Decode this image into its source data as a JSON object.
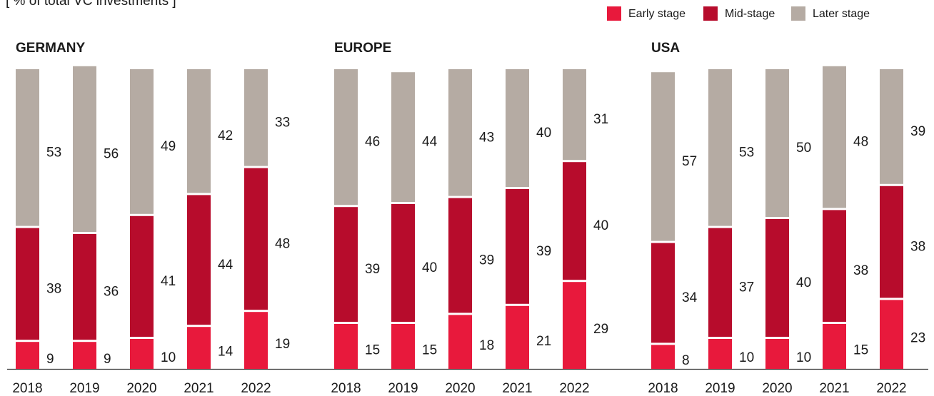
{
  "subtitle": "[ % of total VC investments ]",
  "chart_data": [
    {
      "type": "bar",
      "stacked": true,
      "title": "GERMANY",
      "categories": [
        "2018",
        "2019",
        "2020",
        "2021",
        "2022"
      ],
      "ylim": [
        0,
        100
      ],
      "series": [
        {
          "name": "Early stage",
          "color": "#e8193c",
          "values": [
            9,
            9,
            10,
            14,
            19
          ]
        },
        {
          "name": "Mid-stage",
          "color": "#b70c2c",
          "values": [
            38,
            36,
            41,
            44,
            48
          ]
        },
        {
          "name": "Later stage",
          "color": "#b5aba3",
          "values": [
            53,
            56,
            49,
            42,
            33
          ]
        }
      ]
    },
    {
      "type": "bar",
      "stacked": true,
      "title": "EUROPE",
      "categories": [
        "2018",
        "2019",
        "2020",
        "2021",
        "2022"
      ],
      "ylim": [
        0,
        100
      ],
      "series": [
        {
          "name": "Early stage",
          "color": "#e8193c",
          "values": [
            15,
            15,
            18,
            21,
            29
          ]
        },
        {
          "name": "Mid-stage",
          "color": "#b70c2c",
          "values": [
            39,
            40,
            39,
            39,
            40
          ]
        },
        {
          "name": "Later stage",
          "color": "#b5aba3",
          "values": [
            46,
            44,
            43,
            40,
            31
          ]
        }
      ]
    },
    {
      "type": "bar",
      "stacked": true,
      "title": "USA",
      "categories": [
        "2018",
        "2019",
        "2020",
        "2021",
        "2022"
      ],
      "ylim": [
        0,
        100
      ],
      "series": [
        {
          "name": "Early stage",
          "color": "#e8193c",
          "values": [
            8,
            10,
            10,
            15,
            23
          ]
        },
        {
          "name": "Mid-stage",
          "color": "#b70c2c",
          "values": [
            34,
            37,
            40,
            38,
            38
          ]
        },
        {
          "name": "Later stage",
          "color": "#b5aba3",
          "values": [
            57,
            53,
            50,
            48,
            39
          ]
        }
      ]
    }
  ]
}
